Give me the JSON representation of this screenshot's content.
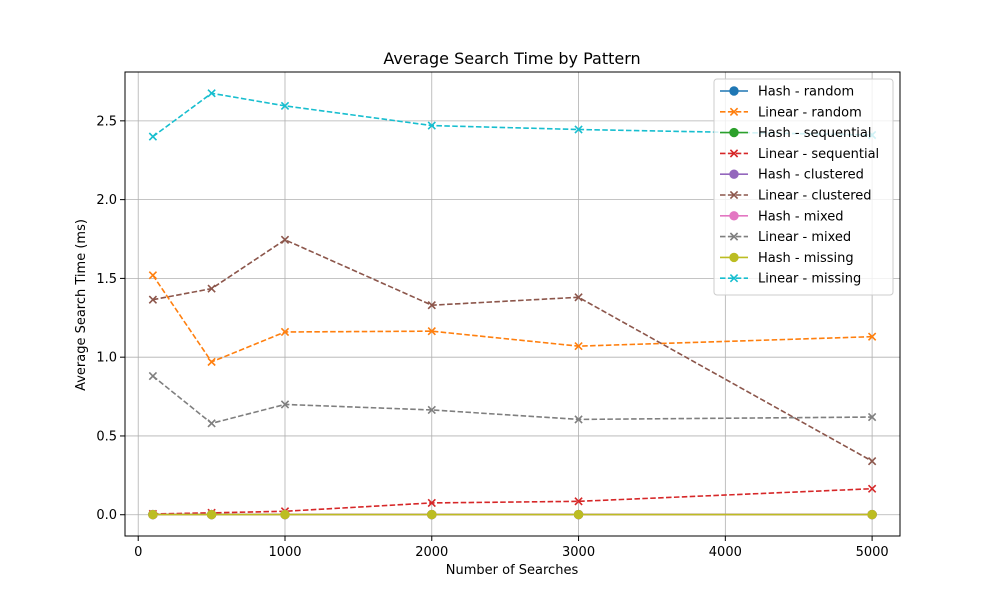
{
  "chart_data": {
    "type": "line",
    "title": "Average Search Time by Pattern",
    "xlabel": "Number of Searches",
    "ylabel": "Average Search Time (ms)",
    "xlim": [
      -90,
      5190
    ],
    "ylim": [
      -0.135,
      2.81
    ],
    "xticks": [
      0,
      1000,
      2000,
      3000,
      4000,
      5000
    ],
    "yticks": [
      0.0,
      0.5,
      1.0,
      1.5,
      2.0,
      2.5
    ],
    "ytick_labels": [
      "0.0",
      "0.5",
      "1.0",
      "1.5",
      "2.0",
      "2.5"
    ],
    "grid": true,
    "legend_position": "top-right",
    "x": [
      100,
      500,
      1000,
      2000,
      3000,
      5000
    ],
    "series": [
      {
        "name": "Hash - random",
        "color": "#1f77b4",
        "style": "solid",
        "marker": "circle",
        "values": [
          0.001,
          0.001,
          0.001,
          0.001,
          0.001,
          0.001
        ]
      },
      {
        "name": "Linear - random",
        "color": "#ff7f0e",
        "style": "dashed",
        "marker": "x",
        "values": [
          1.52,
          0.97,
          1.16,
          1.165,
          1.07,
          1.13
        ]
      },
      {
        "name": "Hash - sequential",
        "color": "#2ca02c",
        "style": "solid",
        "marker": "circle",
        "values": [
          0.001,
          0.001,
          0.001,
          0.001,
          0.001,
          0.001
        ]
      },
      {
        "name": "Linear - sequential",
        "color": "#d62728",
        "style": "dashed",
        "marker": "x",
        "values": [
          0.005,
          0.012,
          0.022,
          0.075,
          0.085,
          0.165
        ]
      },
      {
        "name": "Hash - clustered",
        "color": "#9467bd",
        "style": "solid",
        "marker": "circle",
        "values": [
          0.001,
          0.001,
          0.001,
          0.001,
          0.001,
          0.001
        ]
      },
      {
        "name": "Linear - clustered",
        "color": "#8c564b",
        "style": "dashed",
        "marker": "x",
        "values": [
          1.365,
          1.435,
          1.745,
          1.33,
          1.38,
          0.34
        ]
      },
      {
        "name": "Hash - mixed",
        "color": "#e377c2",
        "style": "solid",
        "marker": "circle",
        "values": [
          0.001,
          0.001,
          0.001,
          0.001,
          0.001,
          0.001
        ]
      },
      {
        "name": "Linear - mixed",
        "color": "#7f7f7f",
        "style": "dashed",
        "marker": "x",
        "values": [
          0.88,
          0.58,
          0.7,
          0.665,
          0.605,
          0.62
        ]
      },
      {
        "name": "Hash - missing",
        "color": "#bcbd22",
        "style": "solid",
        "marker": "circle",
        "values": [
          0.001,
          0.001,
          0.001,
          0.001,
          0.001,
          0.001
        ]
      },
      {
        "name": "Linear - missing",
        "color": "#17becf",
        "style": "dashed",
        "marker": "x",
        "values": [
          2.4,
          2.675,
          2.595,
          2.47,
          2.445,
          2.41
        ]
      }
    ]
  }
}
